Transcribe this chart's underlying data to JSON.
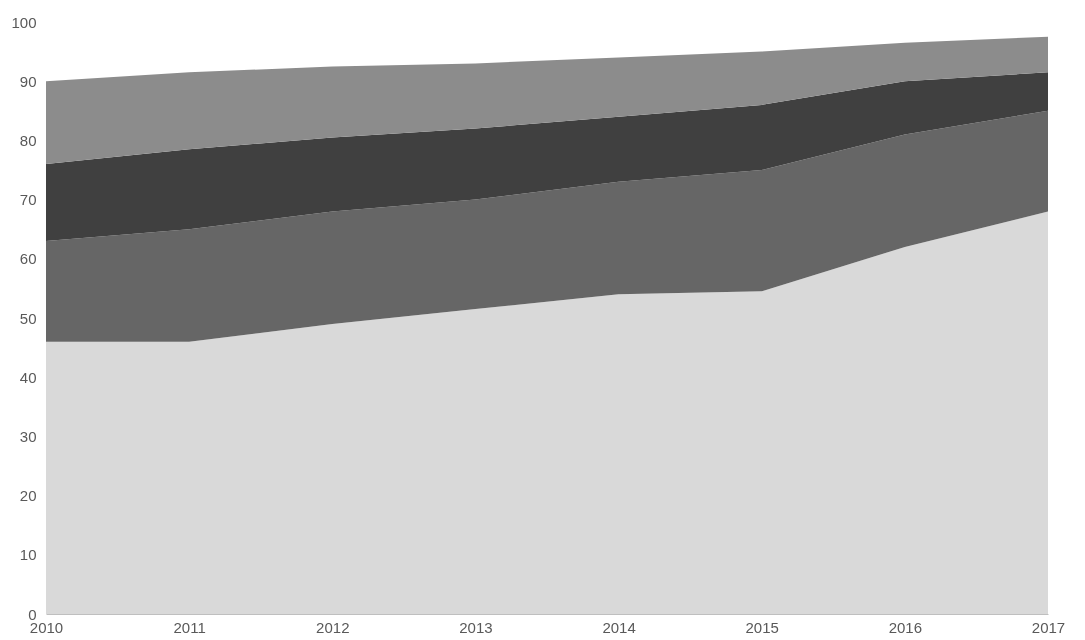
{
  "chart_data": {
    "type": "area",
    "stacked": true,
    "categories": [
      "2010",
      "2011",
      "2012",
      "2013",
      "2014",
      "2015",
      "2016",
      "2017"
    ],
    "series": [
      {
        "color": "#d9d9d9",
        "values": [
          46,
          46,
          49,
          51.5,
          54,
          54.5,
          62,
          68
        ]
      },
      {
        "color": "#666666",
        "values": [
          17,
          19,
          19,
          18.5,
          19,
          20.5,
          19,
          17
        ]
      },
      {
        "color": "#404040",
        "values": [
          13,
          13.5,
          12.5,
          12,
          11,
          11,
          9,
          6.5
        ]
      },
      {
        "color": "#8c8c8c",
        "values": [
          14,
          13,
          12,
          11,
          10,
          9,
          6.5,
          6
        ]
      }
    ],
    "ylim": [
      0,
      100
    ],
    "yticks": [
      0,
      10,
      20,
      30,
      40,
      50,
      60,
      70,
      80,
      90,
      100
    ],
    "grid": false,
    "legend": false
  }
}
